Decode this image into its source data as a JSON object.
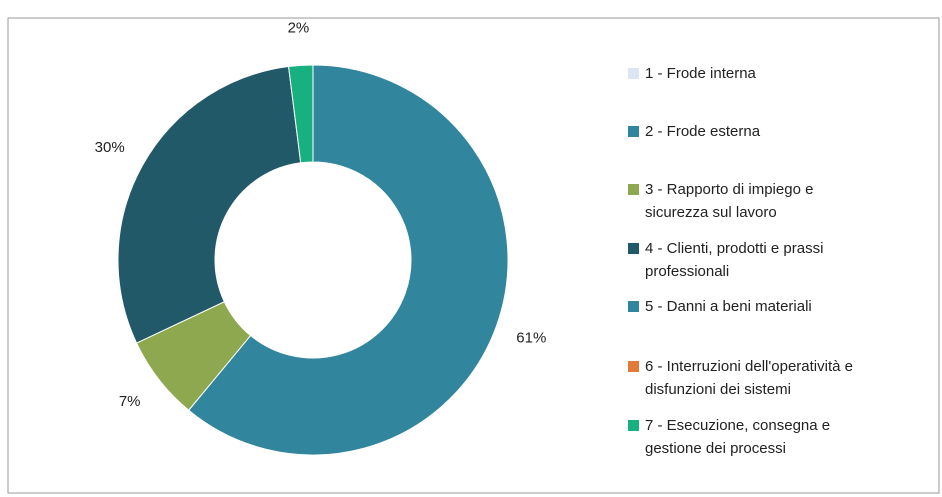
{
  "chart_data": {
    "type": "donut",
    "categories": [
      "1 - Frode interna",
      "2 - Frode esterna",
      "3 - Rapporto di impiego e\nsicurezza sul lavoro",
      "4 - Clienti, prodotti e prassi\nprofessionali",
      "5 - Danni a beni materiali",
      "6 - Interruzioni dell'operatività e\ndisfunzioni dei sistemi",
      "7 - Esecuzione, consegna e\ngestione dei processi"
    ],
    "values": [
      0,
      61,
      7,
      30,
      0,
      0,
      2
    ],
    "value_labels": [
      null,
      "61%",
      "7%",
      "30%",
      null,
      null,
      "2%"
    ],
    "colors": [
      "#dce6f2",
      "#31859c",
      "#8da84f",
      "#215968",
      "#31859c",
      "#e07b39",
      "#17b07e"
    ],
    "legend": "right"
  }
}
